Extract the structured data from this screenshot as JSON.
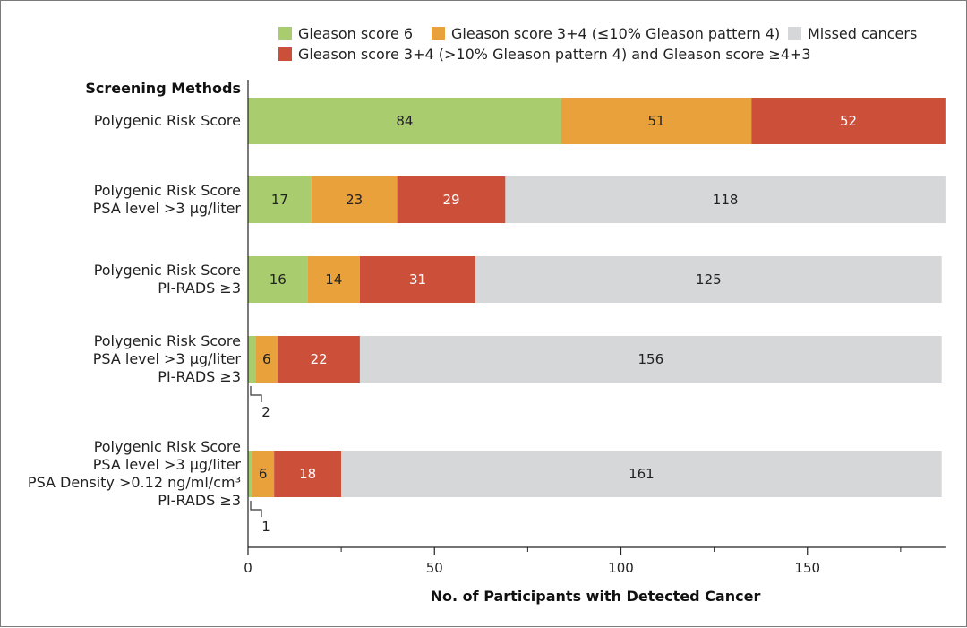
{
  "chart_data": {
    "type": "bar",
    "orientation": "horizontal",
    "stacked": true,
    "row_heading": "Screening Methods",
    "xlabel": "No. of Participants with Detected Cancer",
    "xlim": [
      0,
      187
    ],
    "xticks": [
      0,
      50,
      100,
      150
    ],
    "xticks_minor": [
      25,
      75,
      125,
      175
    ],
    "legend": [
      {
        "key": "g6",
        "label": "Gleason score 6",
        "color": "#a8cc6e"
      },
      {
        "key": "g34low",
        "label": "Gleason score 3+4 (≤10% Gleason pattern 4)",
        "color": "#e9a23b"
      },
      {
        "key": "missed",
        "label": "Missed cancers",
        "color": "#d6d7d9"
      },
      {
        "key": "g34high",
        "label": "Gleason score 3+4 (>10% Gleason pattern 4) and Gleason score ≥4+3",
        "color": "#cc4f3a"
      }
    ],
    "series_order": [
      "g6",
      "g34low",
      "g34high",
      "missed"
    ],
    "categories": [
      {
        "label_lines": [
          "Polygenic Risk Score"
        ],
        "values": {
          "g6": 84,
          "g34low": 51,
          "g34high": 52,
          "missed": 0
        },
        "callout": null
      },
      {
        "label_lines": [
          "Polygenic Risk Score",
          "PSA level >3 μg/liter"
        ],
        "values": {
          "g6": 17,
          "g34low": 23,
          "g34high": 29,
          "missed": 118
        },
        "callout": null
      },
      {
        "label_lines": [
          "Polygenic Risk Score",
          "PI-RADS ≥3"
        ],
        "values": {
          "g6": 16,
          "g34low": 14,
          "g34high": 31,
          "missed": 125
        },
        "callout": null
      },
      {
        "label_lines": [
          "Polygenic Risk Score",
          "PSA level >3 μg/liter",
          "PI-RADS ≥3"
        ],
        "values": {
          "g6": 2,
          "g34low": 6,
          "g34high": 22,
          "missed": 156
        },
        "callout": "2"
      },
      {
        "label_lines": [
          "Polygenic Risk Score",
          "PSA level >3 μg/liter",
          "PSA Density >0.12 ng/ml/cm³",
          "PI-RADS ≥3"
        ],
        "values": {
          "g6": 1,
          "g34low": 6,
          "g34high": 18,
          "missed": 161
        },
        "callout": "1"
      }
    ]
  }
}
